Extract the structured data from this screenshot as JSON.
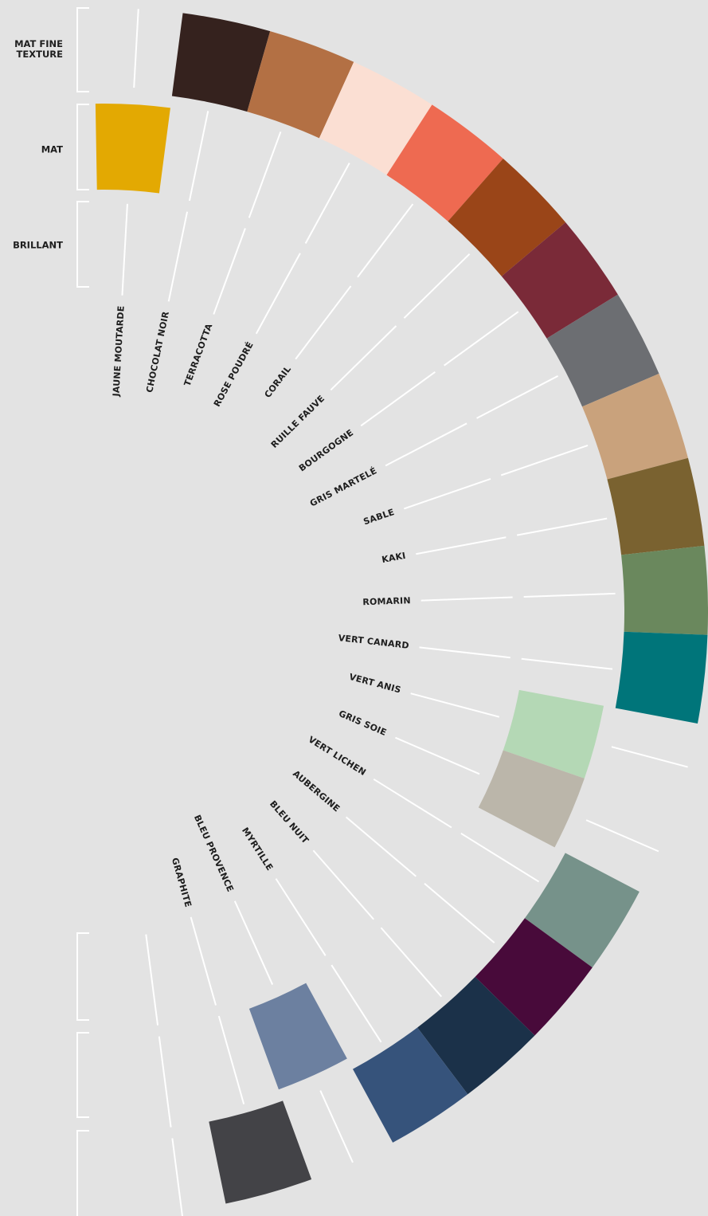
{
  "finishes": [
    "MAT FINE TEXTURE",
    "MAT",
    "BRILLANT"
  ],
  "swatches": [
    {
      "name": "JAUNE MOUTARDE",
      "color": "#e3a902",
      "finish": 1
    },
    {
      "name": "CHOCOLAT NOIR",
      "color": "#35221e",
      "finish": 0
    },
    {
      "name": "TERRACOTTA",
      "color": "#b37044",
      "finish": 0
    },
    {
      "name": "ROSE POUDRÉ",
      "color": "#fbdfd3",
      "finish": 0
    },
    {
      "name": "CORAIL",
      "color": "#ee6a51",
      "finish": 0
    },
    {
      "name": "RUILLE FAUVE",
      "color": "#9a4518",
      "finish": 0
    },
    {
      "name": "BOURGOGNE",
      "color": "#7a2a38",
      "finish": 0
    },
    {
      "name": "GRIS MARTELÉ",
      "color": "#6c6e72",
      "finish": 0
    },
    {
      "name": "SABLE",
      "color": "#c9a27c",
      "finish": 0
    },
    {
      "name": "KAKI",
      "color": "#7a6230",
      "finish": 0
    },
    {
      "name": "ROMARIN",
      "color": "#6a885d",
      "finish": 0
    },
    {
      "name": "VERT CANARD",
      "color": "#00757a",
      "finish": 0
    },
    {
      "name": "VERT ANIS",
      "color": "#b4d8b5",
      "finish": 1
    },
    {
      "name": "GRIS SOIE",
      "color": "#bbb6aa",
      "finish": 1
    },
    {
      "name": "VERT LICHEN",
      "color": "#76928a",
      "finish": 0
    },
    {
      "name": "AUBERGINE",
      "color": "#480a3a",
      "finish": 0
    },
    {
      "name": "BLEU NUIT",
      "color": "#1b3149",
      "finish": 0
    },
    {
      "name": "MYRTILLE",
      "color": "#36537b",
      "finish": 0
    },
    {
      "name": "BLEU PROVENCE",
      "color": "#6c80a0",
      "finish": 1
    },
    {
      "name": "GRAPHITE",
      "color": "#434347",
      "finish": 0
    }
  ]
}
